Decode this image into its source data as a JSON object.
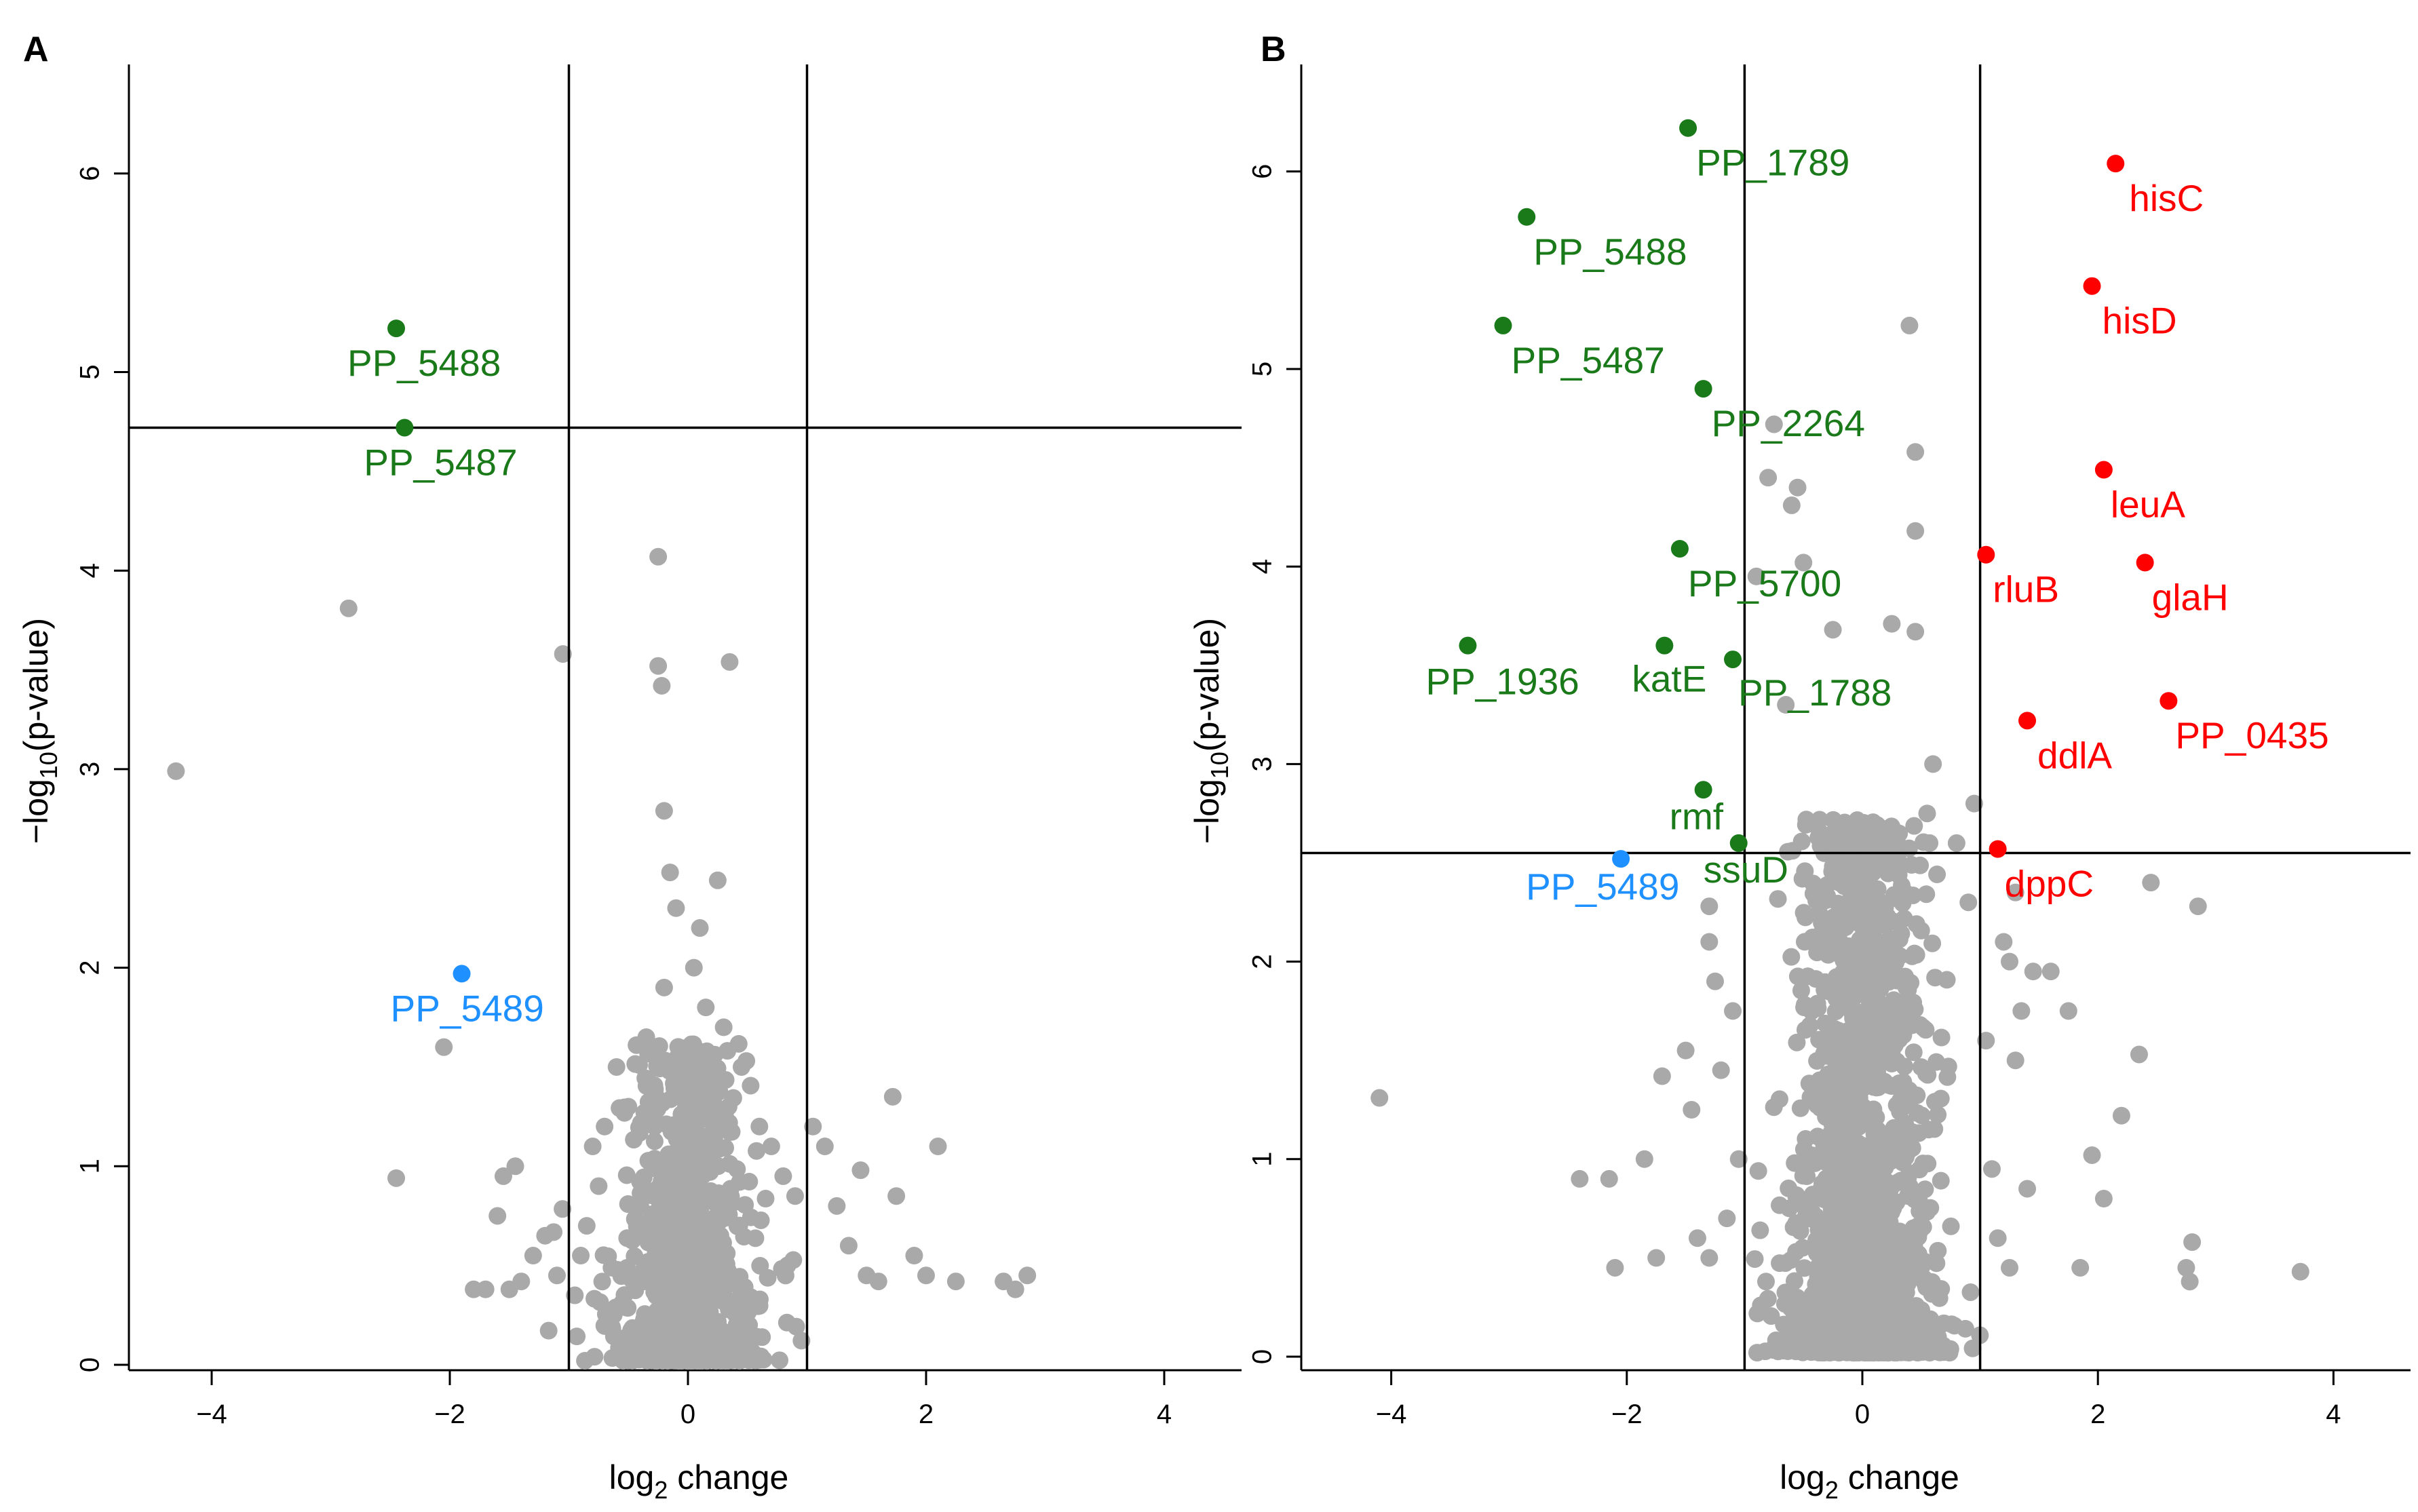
{
  "colors": {
    "background": "#ffffff",
    "non_significant": "#a9a9a9",
    "downregulated": "#1a7a1a",
    "upregulated": "#ff0000",
    "highlight": "#1e90ff",
    "axis": "#000000"
  },
  "chart_data": [
    {
      "panel": "A",
      "type": "scatter",
      "title": "",
      "xlabel": {
        "main": "log",
        "sub": "2",
        "rest": " change"
      },
      "ylabel": {
        "pre": "−log",
        "sub": "10",
        "post": "(p-value)"
      },
      "xlim": [
        -4.6,
        4.6
      ],
      "ylim": [
        0,
        6.6
      ],
      "xticks": [
        -4,
        -2,
        0,
        2,
        4
      ],
      "yticks": [
        0,
        1,
        2,
        3,
        4,
        5,
        6
      ],
      "vlines": [
        -1,
        1
      ],
      "hline": 4.72,
      "labeled_points": [
        {
          "label": "PP_5488",
          "x": -2.45,
          "y": 5.22,
          "group": "down"
        },
        {
          "label": "PP_5487",
          "x": -2.38,
          "y": 4.72,
          "group": "down"
        },
        {
          "label": "PP_5489",
          "x": -1.9,
          "y": 1.97,
          "group": "highlight"
        }
      ],
      "gray_points": [
        [
          -4.3,
          2.99
        ],
        [
          -2.85,
          3.81
        ],
        [
          -2.45,
          0.94
        ],
        [
          -2.05,
          1.6
        ],
        [
          -1.05,
          3.58
        ],
        [
          -1.5,
          0.38
        ],
        [
          -1.4,
          0.42
        ],
        [
          -1.3,
          0.55
        ],
        [
          -1.2,
          0.65
        ],
        [
          -1.1,
          0.45
        ],
        [
          -1.6,
          0.75
        ],
        [
          -1.55,
          0.95
        ],
        [
          -1.45,
          1.0
        ],
        [
          -1.7,
          0.38
        ],
        [
          -1.8,
          0.38
        ],
        [
          -0.95,
          0.35
        ],
        [
          -0.9,
          0.55
        ],
        [
          -0.85,
          0.7
        ],
        [
          -0.8,
          1.1
        ],
        [
          -0.75,
          0.9
        ],
        [
          -0.7,
          1.2
        ],
        [
          -0.6,
          1.5
        ],
        [
          -0.5,
          1.3
        ],
        [
          -0.4,
          0.8
        ],
        [
          -0.3,
          1.0
        ],
        [
          -0.25,
          4.07
        ],
        [
          -0.25,
          3.52
        ],
        [
          -0.22,
          3.42
        ],
        [
          0.35,
          3.54
        ],
        [
          -0.2,
          2.79
        ],
        [
          -0.15,
          2.48
        ],
        [
          0.25,
          2.44
        ],
        [
          -0.1,
          2.3
        ],
        [
          0.1,
          2.2
        ],
        [
          0.05,
          2.0
        ],
        [
          -0.2,
          1.9
        ],
        [
          0.15,
          1.8
        ],
        [
          0.3,
          1.7
        ],
        [
          -0.35,
          1.65
        ],
        [
          0.45,
          1.5
        ],
        [
          0.6,
          1.2
        ],
        [
          0.7,
          1.1
        ],
        [
          0.8,
          0.95
        ],
        [
          0.9,
          0.85
        ],
        [
          1.05,
          1.2
        ],
        [
          1.15,
          1.1
        ],
        [
          1.25,
          0.8
        ],
        [
          1.35,
          0.6
        ],
        [
          1.5,
          0.45
        ],
        [
          1.72,
          1.35
        ],
        [
          1.75,
          0.85
        ],
        [
          1.9,
          0.55
        ],
        [
          2.0,
          0.45
        ],
        [
          2.1,
          1.1
        ],
        [
          2.25,
          0.42
        ],
        [
          2.65,
          0.42
        ],
        [
          2.75,
          0.38
        ],
        [
          2.85,
          0.45
        ],
        [
          1.45,
          0.98
        ],
        [
          1.6,
          0.42
        ]
      ],
      "cluster": {
        "center_x": 0,
        "spread_x": 0.42,
        "max_y": 1.6,
        "count": 900
      }
    },
    {
      "panel": "B",
      "type": "scatter",
      "title": "",
      "xlabel": {
        "main": "log",
        "sub": "2",
        "rest": " change"
      },
      "ylabel": {
        "pre": "−log",
        "sub": "10",
        "post": "(p-value)"
      },
      "xlim": [
        -4.6,
        4.6
      ],
      "ylim": [
        0,
        6.6
      ],
      "xticks": [
        -4,
        -2,
        0,
        2,
        4
      ],
      "yticks": [
        0,
        1,
        2,
        3,
        4,
        5,
        6
      ],
      "vlines": [
        -1,
        1
      ],
      "hline": 2.55,
      "labeled_points": [
        {
          "label": "PP_1789",
          "x": -1.48,
          "y": 6.22,
          "group": "down"
        },
        {
          "label": "PP_5488",
          "x": -2.85,
          "y": 5.77,
          "group": "down"
        },
        {
          "label": "PP_5487",
          "x": -3.05,
          "y": 5.22,
          "group": "down"
        },
        {
          "label": "PP_2264",
          "x": -1.35,
          "y": 4.9,
          "group": "down"
        },
        {
          "label": "PP_5700",
          "x": -1.55,
          "y": 4.09,
          "group": "down"
        },
        {
          "label": "PP_1936",
          "x": -3.35,
          "y": 3.6,
          "group": "down"
        },
        {
          "label": "katE",
          "x": -1.68,
          "y": 3.6,
          "group": "down"
        },
        {
          "label": "PP_1788",
          "x": -1.1,
          "y": 3.53,
          "group": "down"
        },
        {
          "label": "rmf",
          "x": -1.35,
          "y": 2.87,
          "group": "down"
        },
        {
          "label": "ssuD",
          "x": -1.05,
          "y": 2.6,
          "group": "down"
        },
        {
          "label": "PP_5489",
          "x": -2.05,
          "y": 2.52,
          "group": "highlight"
        },
        {
          "label": "hisC",
          "x": 2.15,
          "y": 6.04,
          "group": "up"
        },
        {
          "label": "hisD",
          "x": 1.95,
          "y": 5.42,
          "group": "up"
        },
        {
          "label": "leuA",
          "x": 2.05,
          "y": 4.49,
          "group": "up"
        },
        {
          "label": "rluB",
          "x": 1.05,
          "y": 4.06,
          "group": "up"
        },
        {
          "label": "glaH",
          "x": 2.4,
          "y": 4.02,
          "group": "up"
        },
        {
          "label": "PP_0435",
          "x": 2.6,
          "y": 3.32,
          "group": "up"
        },
        {
          "label": "ddlA",
          "x": 1.4,
          "y": 3.22,
          "group": "up"
        },
        {
          "label": "dppC",
          "x": 1.15,
          "y": 2.57,
          "group": "up"
        }
      ],
      "gray_points": [
        [
          -4.1,
          1.31
        ],
        [
          3.72,
          0.43
        ],
        [
          2.85,
          2.28
        ],
        [
          2.45,
          2.4
        ],
        [
          2.35,
          1.53
        ],
        [
          2.8,
          0.58
        ],
        [
          2.75,
          0.45
        ],
        [
          2.78,
          0.38
        ],
        [
          2.05,
          0.8
        ],
        [
          1.85,
          0.45
        ],
        [
          1.6,
          1.95
        ],
        [
          1.45,
          1.95
        ],
        [
          1.35,
          1.75
        ],
        [
          1.75,
          1.75
        ],
        [
          2.2,
          1.22
        ],
        [
          1.95,
          1.02
        ],
        [
          0.4,
          5.22
        ],
        [
          0.45,
          4.58
        ],
        [
          0.45,
          4.18
        ],
        [
          0.45,
          3.67
        ],
        [
          0.25,
          3.71
        ],
        [
          -0.25,
          3.68
        ],
        [
          -0.5,
          4.02
        ],
        [
          -0.75,
          4.72
        ],
        [
          -0.8,
          4.45
        ],
        [
          -0.6,
          4.31
        ],
        [
          -0.55,
          4.4
        ],
        [
          -0.9,
          3.95
        ],
        [
          -0.65,
          3.3
        ],
        [
          -2.4,
          0.9
        ],
        [
          -2.15,
          0.9
        ],
        [
          -2.1,
          0.45
        ],
        [
          -1.85,
          1.0
        ],
        [
          -1.75,
          0.5
        ],
        [
          -1.7,
          1.42
        ],
        [
          -1.5,
          1.55
        ],
        [
          -1.45,
          1.25
        ],
        [
          -1.3,
          2.1
        ],
        [
          -1.25,
          1.9
        ],
        [
          -1.3,
          2.28
        ],
        [
          -1.1,
          1.75
        ],
        [
          -1.2,
          1.45
        ],
        [
          -1.05,
          1.0
        ],
        [
          -1.4,
          0.6
        ],
        [
          -1.3,
          0.5
        ],
        [
          -1.15,
          0.7
        ],
        [
          1.1,
          0.95
        ],
        [
          1.15,
          0.6
        ],
        [
          1.25,
          0.45
        ],
        [
          1.4,
          0.85
        ],
        [
          1.3,
          1.5
        ],
        [
          1.2,
          2.1
        ],
        [
          1.3,
          2.35
        ],
        [
          1.25,
          2.0
        ],
        [
          1.05,
          1.6
        ],
        [
          0.9,
          2.3
        ],
        [
          0.8,
          2.6
        ],
        [
          0.95,
          2.8
        ],
        [
          0.6,
          3.0
        ],
        [
          0.55,
          2.75
        ]
      ],
      "cluster": {
        "center_x": 0,
        "spread_x": 0.45,
        "max_y": 2.7,
        "count": 1600
      }
    }
  ]
}
